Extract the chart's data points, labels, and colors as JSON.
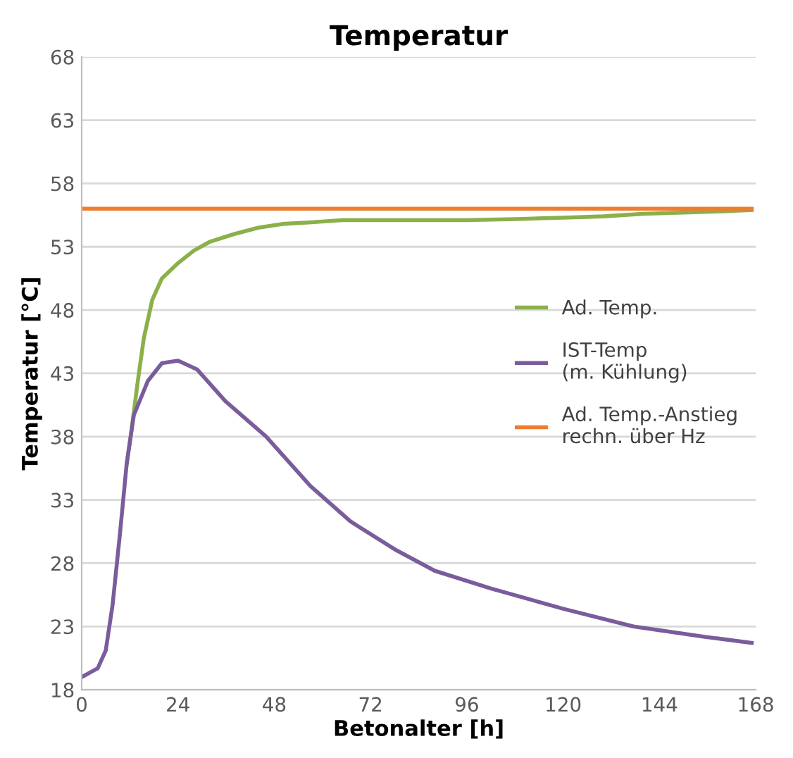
{
  "chart_data": {
    "type": "line",
    "title": "Temperatur",
    "xlabel": "Betonalter [h]",
    "ylabel": "Temperatur [°C]",
    "xlim": [
      0,
      168
    ],
    "xticks": [
      0,
      24,
      48,
      72,
      96,
      120,
      144,
      168
    ],
    "ylim": [
      18,
      68
    ],
    "yticks": [
      18,
      23,
      28,
      33,
      38,
      43,
      48,
      53,
      58,
      63,
      68
    ],
    "grid": "y",
    "legend": "right",
    "marker": "none",
    "line_style": "solid",
    "series": [
      {
        "name": "Ad. Temp.",
        "color": "#8bb04a",
        "x": [
          11.2,
          12.4,
          14,
          15.5,
          17.6,
          20,
          24,
          28,
          32,
          38,
          44,
          50,
          56,
          65,
          79,
          96,
          110,
          120,
          130,
          140,
          150,
          160,
          167
        ],
        "values": [
          35.8,
          38.5,
          42.4,
          45.8,
          48.8,
          50.5,
          51.7,
          52.7,
          53.4,
          54,
          54.5,
          54.8,
          54.9,
          55.1,
          55.1,
          55.1,
          55.2,
          55.3,
          55.4,
          55.6,
          55.7,
          55.8,
          55.9
        ]
      },
      {
        "name": "IST-Temp\n(m. Kühlung)",
        "color": "#7a5c9c",
        "x": [
          0,
          4,
          6,
          7.7,
          9.5,
          11.2,
          13,
          16.5,
          20,
          24,
          28.8,
          35.8,
          46,
          57,
          67,
          78,
          88,
          102,
          120,
          137.5,
          155,
          167
        ],
        "values": [
          19,
          19.7,
          21.1,
          24.7,
          30.2,
          35.8,
          39.7,
          42.4,
          43.8,
          44.0,
          43.3,
          40.8,
          38,
          34.1,
          31.3,
          29.1,
          27.4,
          26,
          24.4,
          23,
          22.2,
          21.7
        ]
      },
      {
        "name": "Ad. Temp.-Anstieg\nrechn. über Hz",
        "color": "#ed7d31",
        "x": [
          0,
          167
        ],
        "values": [
          56,
          56
        ]
      }
    ]
  }
}
